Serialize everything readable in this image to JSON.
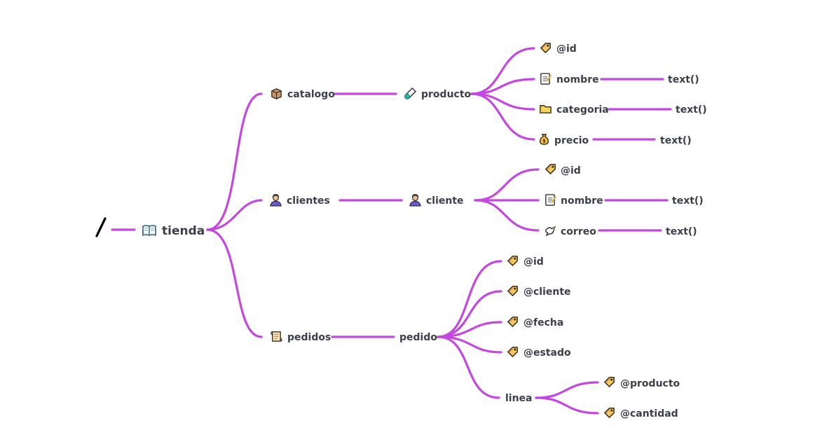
{
  "colors": {
    "edge": "#c447e0",
    "text": "#3b3f4a"
  },
  "root_marker": "/",
  "nodes": {
    "tienda": {
      "label": "tienda",
      "icon": "open-book-icon"
    },
    "catalogo": {
      "label": "catalogo",
      "icon": "box-icon"
    },
    "producto": {
      "label": "producto",
      "icon": "test-tube-icon"
    },
    "p_id": {
      "label": "@id",
      "icon": "tag-icon"
    },
    "p_nombre": {
      "label": "nombre",
      "icon": "memo-icon"
    },
    "p_nombre_t": {
      "label": "text()"
    },
    "p_cat": {
      "label": "categoria",
      "icon": "folder-icon"
    },
    "p_cat_t": {
      "label": "text()"
    },
    "p_precio": {
      "label": "precio",
      "icon": "money-bag-icon"
    },
    "p_precio_t": {
      "label": "text()"
    },
    "clientes": {
      "label": "clientes",
      "icon": "person-icon"
    },
    "cliente": {
      "label": "cliente",
      "icon": "person-icon"
    },
    "c_id": {
      "label": "@id",
      "icon": "tag-icon"
    },
    "c_nombre": {
      "label": "nombre",
      "icon": "memo-icon"
    },
    "c_nombre_t": {
      "label": "text()"
    },
    "c_correo": {
      "label": "correo",
      "icon": "dove-icon"
    },
    "c_correo_t": {
      "label": "text()"
    },
    "pedidos": {
      "label": "pedidos",
      "icon": "scroll-icon"
    },
    "pedido": {
      "label": "pedido"
    },
    "o_id": {
      "label": "@id",
      "icon": "tag-icon"
    },
    "o_cliente": {
      "label": "@cliente",
      "icon": "tag-icon"
    },
    "o_fecha": {
      "label": "@fecha",
      "icon": "tag-icon"
    },
    "o_estado": {
      "label": "@estado",
      "icon": "tag-icon"
    },
    "linea": {
      "label": "linea"
    },
    "l_prod": {
      "label": "@producto",
      "icon": "tag-icon"
    },
    "l_cant": {
      "label": "@cantidad",
      "icon": "tag-icon"
    }
  }
}
